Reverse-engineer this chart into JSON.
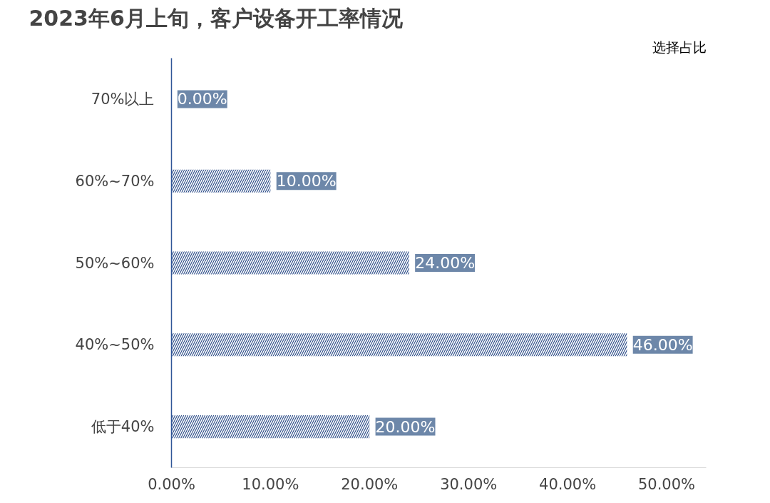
{
  "chart_data": {
    "type": "bar",
    "orientation": "horizontal",
    "title": "2023年6月上旬，客户设备开工率情况",
    "annotations": [
      "选择占比"
    ],
    "categories": [
      "70%以上",
      "60%~70%",
      "50%~60%",
      "40%~50%",
      "低于40%"
    ],
    "values": [
      0,
      10,
      24,
      46,
      20
    ],
    "value_labels": [
      "0.00%",
      "10.00%",
      "24.00%",
      "46.00%",
      "20.00%"
    ],
    "color": "#2f4f8a",
    "xlim": [
      0,
      54
    ],
    "xticks": [
      {
        "value": 0,
        "label": "0.00%"
      },
      {
        "value": 10,
        "label": "10.00%"
      },
      {
        "value": 20,
        "label": "20.00%"
      },
      {
        "value": 30,
        "label": "30.00%"
      },
      {
        "value": 40,
        "label": "40.00%"
      },
      {
        "value": 50,
        "label": "50.00%"
      }
    ],
    "grid": false
  }
}
